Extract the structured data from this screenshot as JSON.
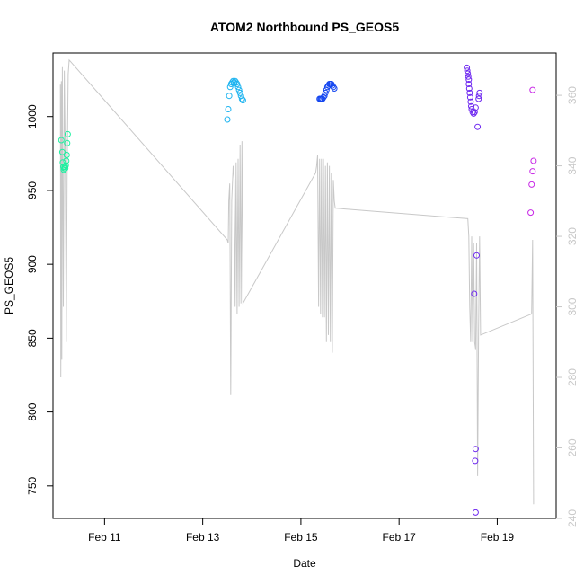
{
  "chart_data": {
    "type": "scatter",
    "title": "ATOM2 Northbound PS_GEOS5",
    "xlabel": "Date",
    "ylabel": "PS_GEOS5",
    "x_unit": "days (Feb 2016)",
    "xlim": [
      9.95,
      20.2
    ],
    "ylim": [
      728,
      1043
    ],
    "y2lim": [
      240,
      372
    ],
    "x_ticks": [
      {
        "v": 11,
        "label": "Feb 11"
      },
      {
        "v": 13,
        "label": "Feb 13"
      },
      {
        "v": 15,
        "label": "Feb 15"
      },
      {
        "v": 17,
        "label": "Feb 17"
      },
      {
        "v": 19,
        "label": "Feb 19"
      }
    ],
    "y_ticks": [
      750,
      800,
      850,
      900,
      950,
      1000
    ],
    "y2_ticks": [
      240,
      260,
      280,
      300,
      320,
      340,
      360
    ],
    "grid": false,
    "series": [
      {
        "color": "#1ef0a0",
        "points": [
          [
            10.12,
            984
          ],
          [
            10.14,
            976
          ],
          [
            10.15,
            969
          ],
          [
            10.16,
            966
          ],
          [
            10.17,
            964
          ],
          [
            10.18,
            965
          ],
          [
            10.19,
            966
          ],
          [
            10.2,
            965
          ],
          [
            10.21,
            967
          ],
          [
            10.22,
            970
          ],
          [
            10.23,
            974
          ],
          [
            10.24,
            982
          ],
          [
            10.25,
            988
          ]
        ]
      },
      {
        "color": "#1eb4f0",
        "points": [
          [
            13.5,
            998
          ],
          [
            13.52,
            1005
          ],
          [
            13.54,
            1014
          ],
          [
            13.56,
            1020
          ],
          [
            13.58,
            1022
          ],
          [
            13.6,
            1023
          ],
          [
            13.62,
            1024
          ],
          [
            13.64,
            1023
          ],
          [
            13.66,
            1024
          ],
          [
            13.68,
            1023
          ],
          [
            13.7,
            1022
          ],
          [
            13.72,
            1020
          ],
          [
            13.74,
            1018
          ],
          [
            13.76,
            1016
          ],
          [
            13.78,
            1014
          ],
          [
            13.8,
            1012
          ],
          [
            13.82,
            1011
          ]
        ]
      },
      {
        "color": "#1446f0",
        "points": [
          [
            15.38,
            1012
          ],
          [
            15.4,
            1012
          ],
          [
            15.42,
            1012
          ],
          [
            15.44,
            1012
          ],
          [
            15.46,
            1013
          ],
          [
            15.48,
            1014
          ],
          [
            15.5,
            1016
          ],
          [
            15.52,
            1018
          ],
          [
            15.54,
            1020
          ],
          [
            15.56,
            1021
          ],
          [
            15.58,
            1022
          ],
          [
            15.6,
            1022
          ],
          [
            15.62,
            1022
          ],
          [
            15.64,
            1021
          ],
          [
            15.66,
            1020
          ],
          [
            15.68,
            1019
          ]
        ]
      },
      {
        "color": "#6e28f0",
        "points": [
          [
            18.38,
            1033
          ],
          [
            18.39,
            1031
          ],
          [
            18.4,
            1029
          ],
          [
            18.41,
            1027
          ],
          [
            18.42,
            1025
          ],
          [
            18.42,
            1022
          ],
          [
            18.43,
            1019
          ],
          [
            18.44,
            1016
          ],
          [
            18.45,
            1013
          ],
          [
            18.46,
            1010
          ],
          [
            18.47,
            1007
          ],
          [
            18.48,
            1005
          ],
          [
            18.5,
            1003
          ],
          [
            18.52,
            1002
          ],
          [
            18.54,
            1003
          ],
          [
            18.56,
            1006
          ],
          [
            18.6,
            993
          ],
          [
            18.62,
            1012
          ],
          [
            18.63,
            1014
          ],
          [
            18.64,
            1016
          ],
          [
            18.58,
            906
          ],
          [
            18.53,
            880
          ],
          [
            18.56,
            775
          ],
          [
            18.55,
            767
          ],
          [
            18.56,
            732
          ]
        ]
      },
      {
        "color": "#c828e6",
        "points": [
          [
            19.72,
            1018
          ],
          [
            19.74,
            970
          ],
          [
            19.72,
            963
          ],
          [
            19.7,
            954
          ],
          [
            19.68,
            935
          ]
        ]
      }
    ],
    "line_series": {
      "color": "#c8c8c8",
      "axis": "right",
      "points": [
        [
          10.1,
          363
        ],
        [
          10.11,
          280
        ],
        [
          10.12,
          364
        ],
        [
          10.13,
          285
        ],
        [
          10.14,
          368
        ],
        [
          10.16,
          300
        ],
        [
          10.18,
          367
        ],
        [
          10.2,
          342
        ],
        [
          10.22,
          290
        ],
        [
          10.24,
          340
        ],
        [
          10.26,
          366
        ],
        [
          10.28,
          370
        ],
        [
          13.5,
          319
        ],
        [
          13.52,
          318
        ],
        [
          13.53,
          330
        ],
        [
          13.55,
          335
        ],
        [
          13.57,
          275
        ],
        [
          13.59,
          330
        ],
        [
          13.62,
          340
        ],
        [
          13.64,
          336
        ],
        [
          13.66,
          300
        ],
        [
          13.68,
          341
        ],
        [
          13.7,
          298
        ],
        [
          13.72,
          342
        ],
        [
          13.74,
          300
        ],
        [
          13.76,
          346
        ],
        [
          13.78,
          301
        ],
        [
          13.8,
          347
        ],
        [
          13.82,
          301
        ],
        [
          15.3,
          338
        ],
        [
          15.32,
          340
        ],
        [
          15.34,
          343
        ],
        [
          15.36,
          300
        ],
        [
          15.38,
          342
        ],
        [
          15.4,
          298
        ],
        [
          15.42,
          342
        ],
        [
          15.44,
          297
        ],
        [
          15.46,
          342
        ],
        [
          15.48,
          297
        ],
        [
          15.5,
          340
        ],
        [
          15.52,
          290
        ],
        [
          15.54,
          341
        ],
        [
          15.56,
          292
        ],
        [
          15.58,
          340
        ],
        [
          15.6,
          290
        ],
        [
          15.62,
          338
        ],
        [
          15.64,
          287
        ],
        [
          15.66,
          336
        ],
        [
          15.68,
          330
        ],
        [
          15.7,
          328
        ],
        [
          18.4,
          325
        ],
        [
          18.42,
          320
        ],
        [
          18.44,
          300
        ],
        [
          18.46,
          290
        ],
        [
          18.48,
          320
        ],
        [
          18.5,
          290
        ],
        [
          18.52,
          318
        ],
        [
          18.54,
          290
        ],
        [
          18.56,
          288
        ],
        [
          18.58,
          318
        ],
        [
          18.6,
          252
        ],
        [
          18.62,
          294
        ],
        [
          18.64,
          320
        ],
        [
          18.66,
          292
        ],
        [
          19.7,
          298
        ],
        [
          19.72,
          319
        ],
        [
          19.74,
          244
        ]
      ]
    }
  }
}
